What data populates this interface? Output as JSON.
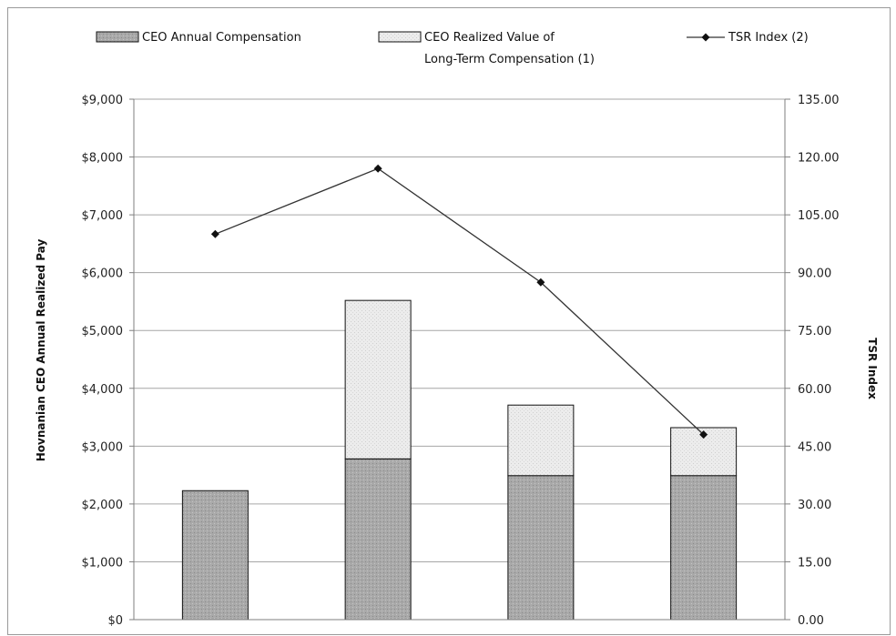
{
  "chart_data": {
    "type": "bar",
    "stacked": true,
    "categories": [
      "",
      "",
      "",
      ""
    ],
    "series": [
      {
        "name": "CEO Annual Compensation",
        "kind": "bar",
        "axis": "left",
        "values": [
          2230,
          2780,
          2490,
          2490
        ],
        "color": "#a9a9a9"
      },
      {
        "name": "CEO Realized Value of Long-Term Compensation (1)",
        "kind": "bar",
        "axis": "left",
        "values": [
          0,
          2740,
          1220,
          830
        ],
        "color": "#ececec"
      },
      {
        "name": "TSR Index (2)",
        "kind": "line",
        "axis": "right",
        "values": [
          100.0,
          117.0,
          87.5,
          48.0
        ],
        "color": "#333333"
      }
    ],
    "legend_lines": [
      [
        "CEO Annual Compensation"
      ],
      [
        "CEO Realized Value of",
        "Long-Term Compensation (1)"
      ],
      [
        "TSR Index (2)"
      ]
    ],
    "legend_position": "top",
    "ylabel": "Hovnanian  CEO Annual Realized Pay",
    "y2label": "TSR Index",
    "ylim": [
      0,
      9000
    ],
    "y2lim": [
      0,
      135
    ],
    "yticks": [
      "$0",
      "$1,000",
      "$2,000",
      "$3,000",
      "$4,000",
      "$5,000",
      "$6,000",
      "$7,000",
      "$8,000",
      "$9,000"
    ],
    "y2ticks": [
      "0.00",
      "15.00",
      "30.00",
      "45.00",
      "60.00",
      "75.00",
      "90.00",
      "105.00",
      "120.00",
      "135.00"
    ],
    "grid": true
  }
}
